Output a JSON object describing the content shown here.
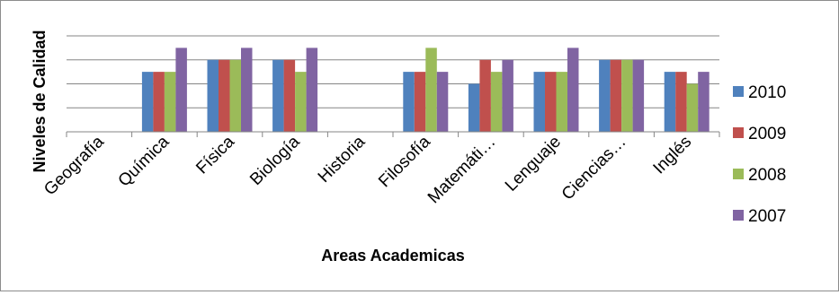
{
  "chart_data": {
    "type": "bar",
    "title": "",
    "xlabel": "Areas Academicas",
    "ylabel": "Niveles de Calidad",
    "ylim": [
      0,
      4
    ],
    "grid": true,
    "legend_position": "right",
    "categories": [
      "Geografía",
      "Química",
      "Física",
      "Biología",
      "Historia",
      "Filosofía",
      "Matemáti…",
      "Lenguaje",
      "Ciencias…",
      "Inglés"
    ],
    "series": [
      {
        "name": "2010",
        "color": "#4f81bd",
        "values": [
          0,
          2.5,
          3,
          3,
          0,
          2.5,
          2,
          2.5,
          3,
          2.5
        ]
      },
      {
        "name": "2009",
        "color": "#c0504d",
        "values": [
          0,
          2.5,
          3,
          3,
          0,
          2.5,
          3,
          2.5,
          3,
          2.5
        ]
      },
      {
        "name": "2008",
        "color": "#9bbb59",
        "values": [
          0,
          2.5,
          3,
          2.5,
          0,
          3.5,
          2.5,
          2.5,
          3,
          2
        ]
      },
      {
        "name": "2007",
        "color": "#8064a2",
        "values": [
          0,
          3.5,
          3.5,
          3.5,
          0,
          2.5,
          3,
          3.5,
          3,
          2.5
        ]
      }
    ]
  }
}
